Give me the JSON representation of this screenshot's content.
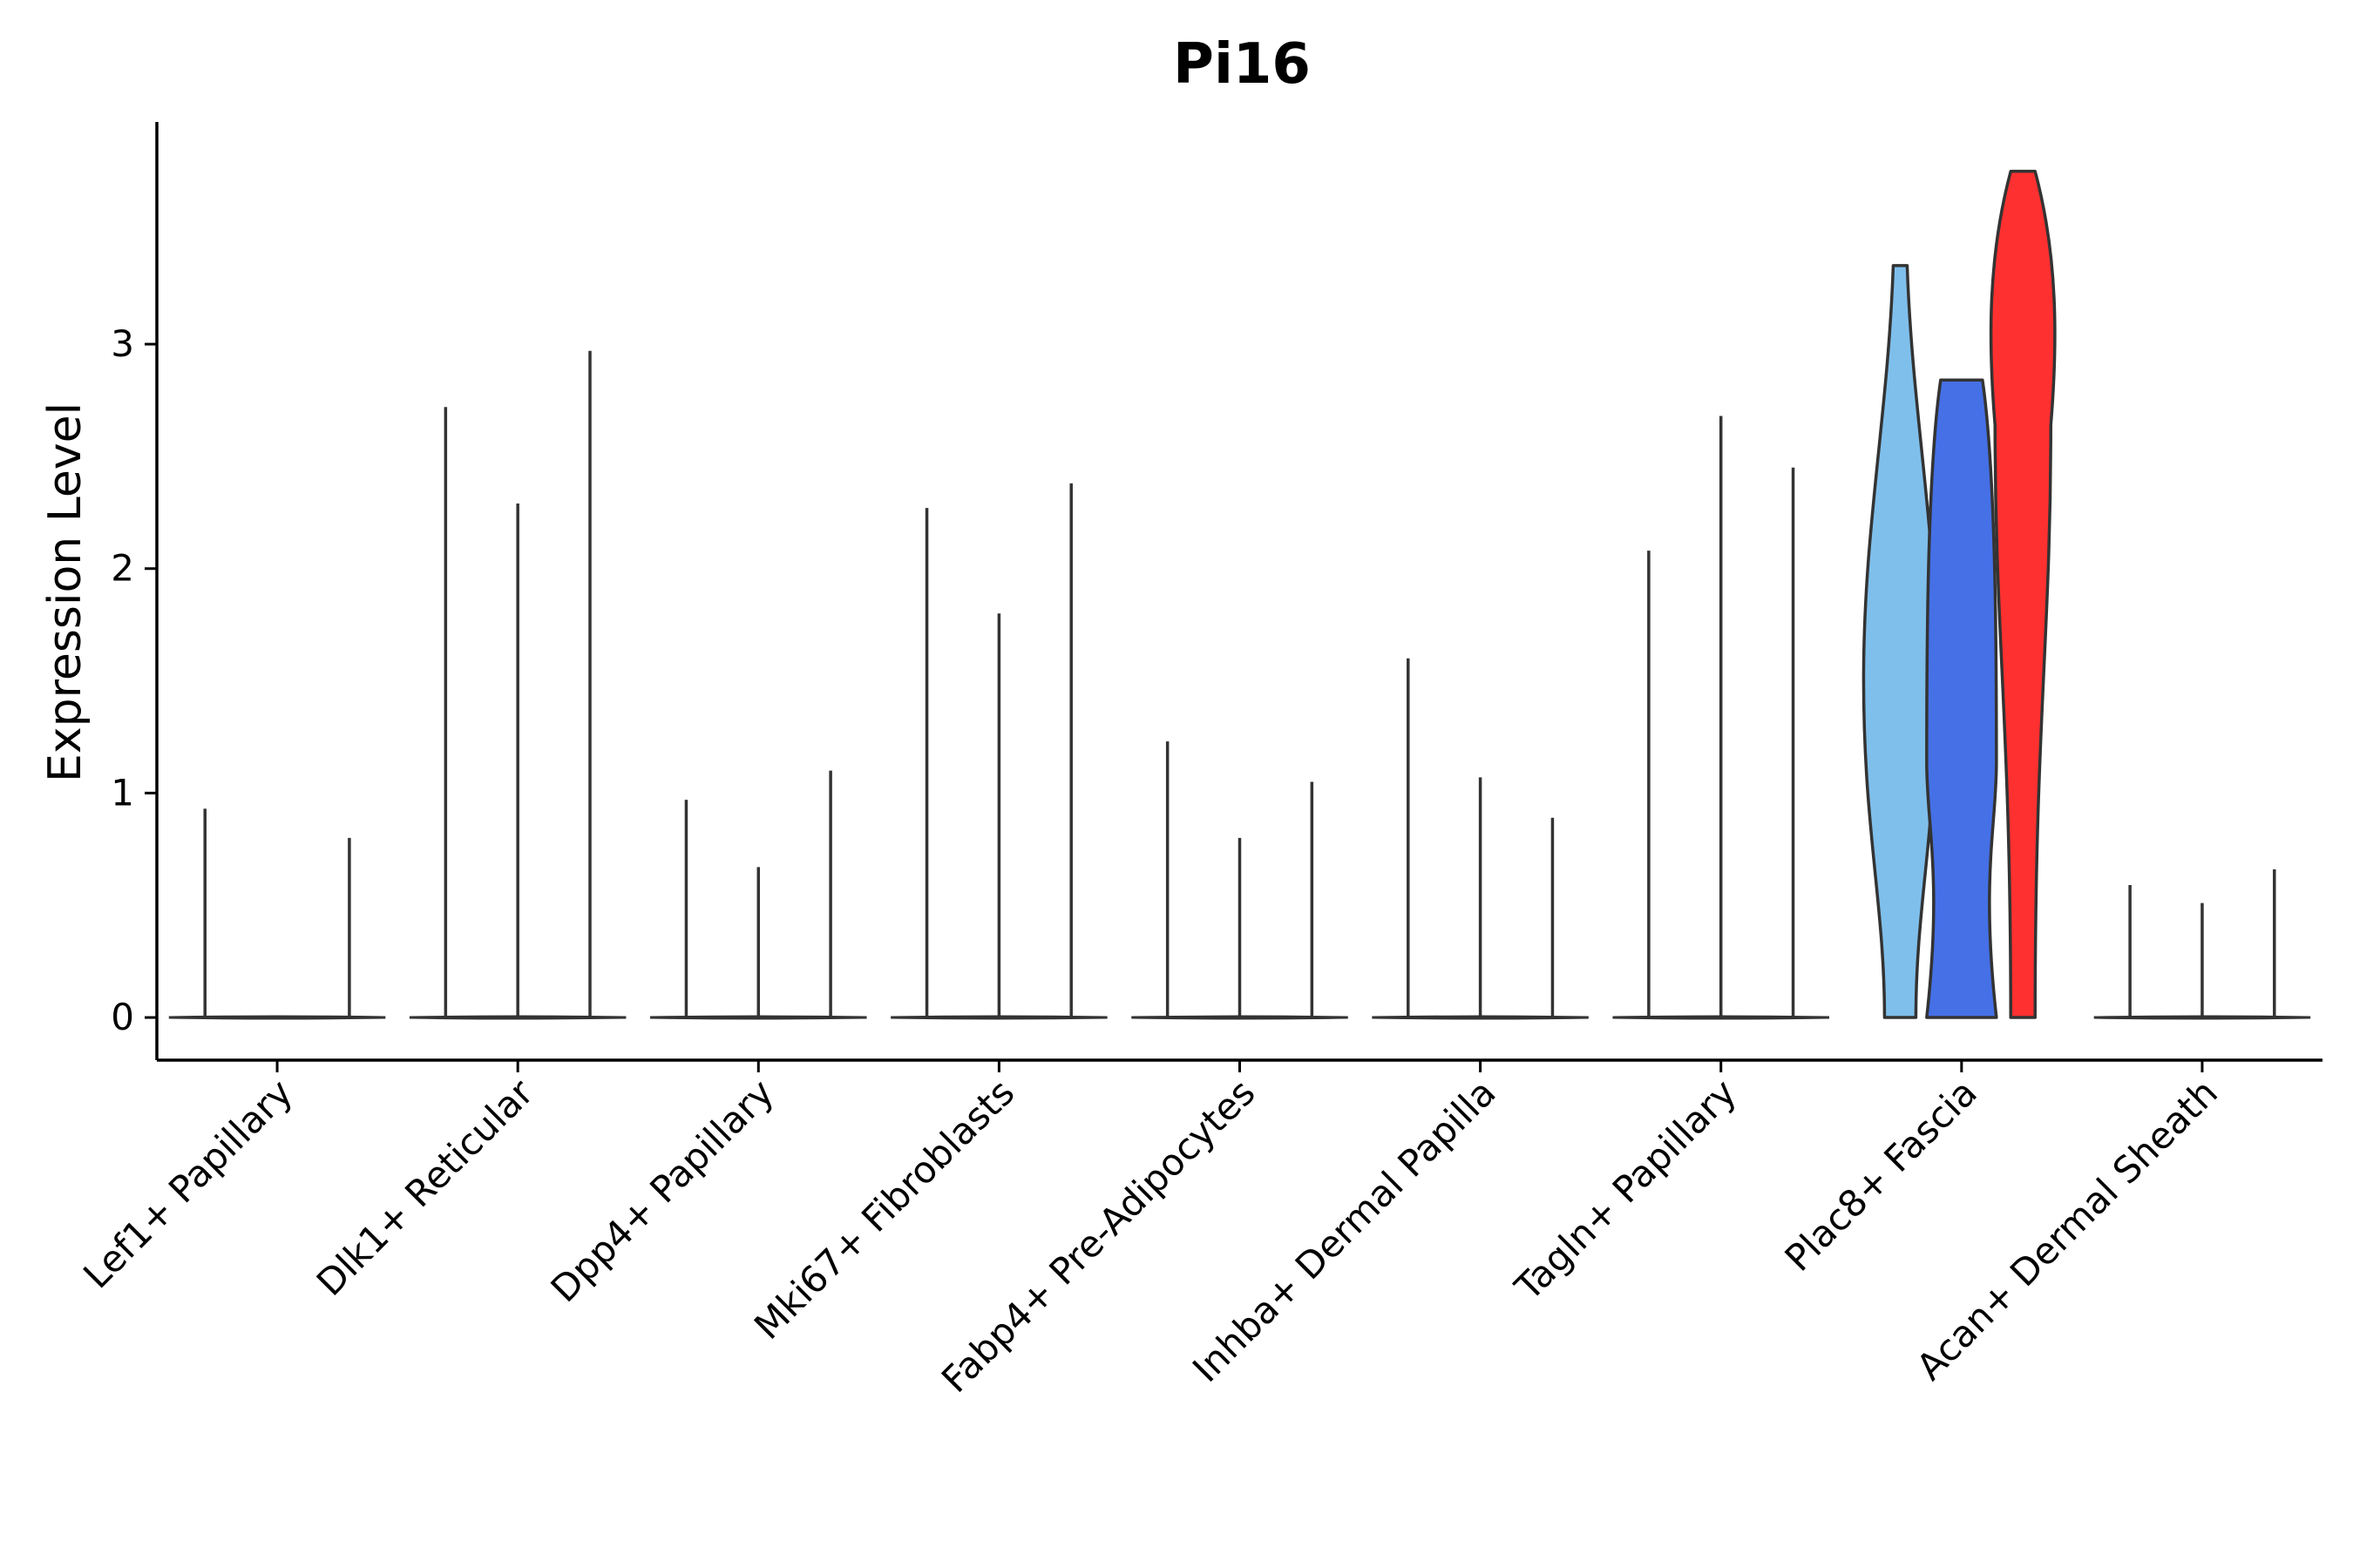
{
  "chart_data": {
    "type": "violin",
    "title": "Pi16",
    "xlabel": "",
    "ylabel": "Expression Level",
    "ylim": [
      -0.19,
      3.99
    ],
    "yticks": [
      0,
      1,
      2,
      3
    ],
    "grid": false,
    "legend": "none",
    "categories": [
      "Lef1+ Papillary",
      "Dlk1+ Reticular",
      "Dpp4+ Papillary",
      "Mki67+ Fibroblasts",
      "Fabp4+ Pre-Adipocytes",
      "Inhba+ Dermal Papilla",
      "Tagln+ Papillary",
      "Plac8+ Fascia",
      "Acan+ Dermal Sheath"
    ],
    "series": [
      {
        "category": "Lef1+ Papillary",
        "max_values": [
          0.93,
          0,
          0.8
        ],
        "color": "#F8766D"
      },
      {
        "category": "Dlk1+ Reticular",
        "max_values": [
          2.72,
          2.29,
          2.97
        ],
        "color": "#D39200"
      },
      {
        "category": "Dpp4+ Papillary",
        "max_values": [
          0.97,
          0.67,
          1.1
        ],
        "color": "#93AA00"
      },
      {
        "category": "Mki67+ Fibroblasts",
        "max_values": [
          2.27,
          1.8,
          2.38
        ],
        "color": "#00BA38"
      },
      {
        "category": "Fabp4+ Pre-Adipocytes",
        "max_values": [
          1.23,
          0.8,
          1.05
        ],
        "color": "#00C19F"
      },
      {
        "category": "Inhba+ Dermal Papilla",
        "max_values": [
          1.6,
          1.07,
          0.89
        ],
        "color": "#00B9E3"
      },
      {
        "category": "Tagln+ Papillary",
        "max_values": [
          2.08,
          2.68,
          2.45
        ],
        "color": "#619CFF"
      },
      {
        "category": "Plac8+ Fascia",
        "violins": [
          {
            "max": 3.35,
            "color": "#7FBFEB"
          },
          {
            "max": 2.84,
            "color": "#4570E6"
          },
          {
            "max": 3.77,
            "color": "#FF3030"
          }
        ]
      },
      {
        "category": "Acan+ Dermal Sheath",
        "max_values": [
          0.59,
          0.51,
          0.66
        ],
        "color": "#FF61C3"
      }
    ]
  }
}
